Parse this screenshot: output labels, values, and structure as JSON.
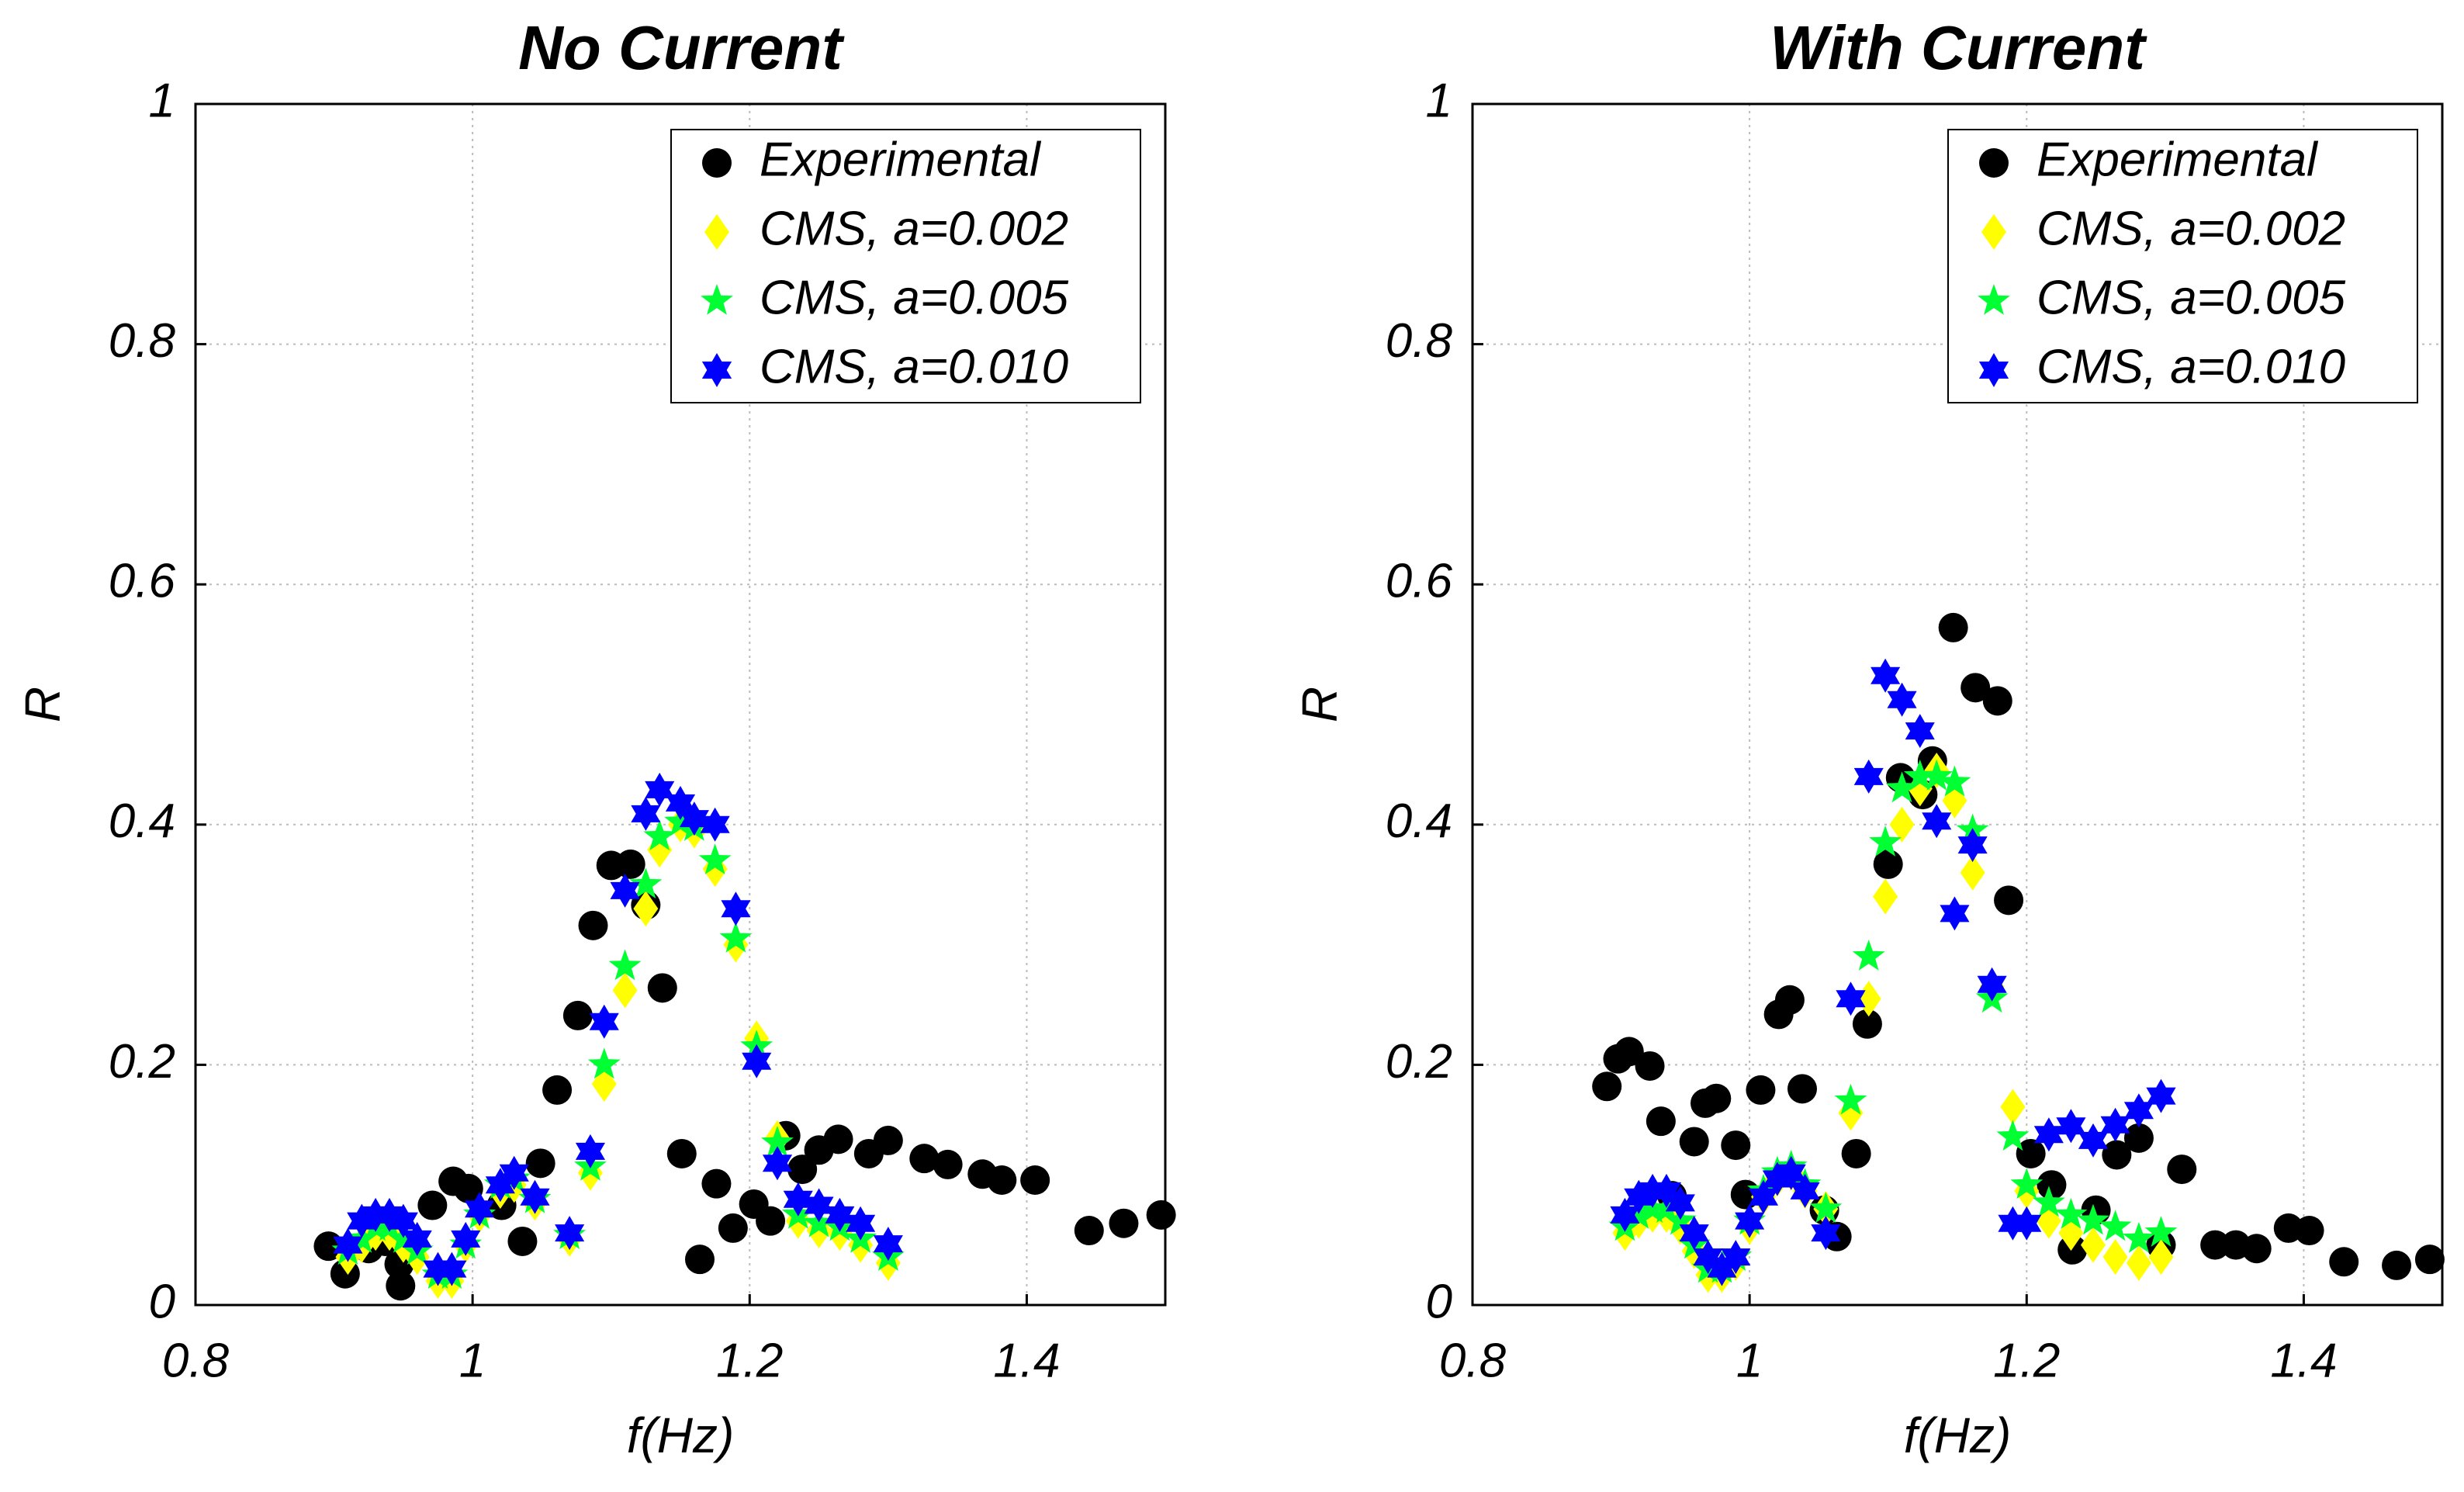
{
  "chart_data": [
    {
      "type": "scatter",
      "title": "No Current",
      "xlabel": "f(Hz)",
      "ylabel": "R",
      "xlim": [
        0.8,
        1.5
      ],
      "ylim": [
        0,
        1
      ],
      "xticks": [
        0.8,
        1,
        1.2,
        1.4
      ],
      "yticks": [
        0,
        0.2,
        0.4,
        0.6,
        0.8,
        1
      ],
      "grid": true,
      "legend": "upper right",
      "series": [
        {
          "name": "Experimental",
          "color": "#000000",
          "marker": "circle",
          "x": [
            0.896,
            0.908,
            0.925,
            0.937,
            0.947,
            0.948,
            0.971,
            0.986,
            0.997,
            1.021,
            1.036,
            1.049,
            1.061,
            1.076,
            1.087,
            1.1,
            1.114,
            1.125,
            1.137,
            1.151,
            1.164,
            1.176,
            1.188,
            1.203,
            1.215,
            1.226,
            1.238,
            1.25,
            1.264,
            1.286,
            1.3,
            1.326,
            1.343,
            1.368,
            1.382,
            1.406,
            1.445,
            1.47,
            1.497
          ],
          "values": [
            0.049,
            0.026,
            0.047,
            0.053,
            0.034,
            0.016,
            0.083,
            0.103,
            0.097,
            0.083,
            0.053,
            0.118,
            0.179,
            0.241,
            0.316,
            0.366,
            0.367,
            0.333,
            0.264,
            0.126,
            0.038,
            0.101,
            0.064,
            0.084,
            0.07,
            0.141,
            0.113,
            0.129,
            0.138,
            0.126,
            0.137,
            0.122,
            0.117,
            0.109,
            0.104,
            0.104,
            0.062,
            0.068,
            0.075
          ]
        },
        {
          "name": "CMS, a=0.002",
          "color": "#ffff00",
          "marker": "diamond",
          "x": [
            0.91,
            0.92,
            0.93,
            0.94,
            0.95,
            0.96,
            0.975,
            0.985,
            0.995,
            1.005,
            1.02,
            1.03,
            1.045,
            1.07,
            1.085,
            1.095,
            1.11,
            1.125,
            1.135,
            1.15,
            1.16,
            1.175,
            1.19,
            1.205,
            1.22,
            1.235,
            1.25,
            1.265,
            1.28,
            1.3
          ],
          "values": [
            0.04,
            0.05,
            0.06,
            0.06,
            0.05,
            0.04,
            0.02,
            0.02,
            0.05,
            0.075,
            0.095,
            0.1,
            0.085,
            0.055,
            0.11,
            0.184,
            0.262,
            0.33,
            0.379,
            0.4,
            0.395,
            0.363,
            0.3,
            0.222,
            0.139,
            0.07,
            0.062,
            0.06,
            0.05,
            0.035
          ]
        },
        {
          "name": "CMS, a=0.005",
          "color": "#00ff33",
          "marker": "star5",
          "x": [
            0.91,
            0.92,
            0.93,
            0.94,
            0.95,
            0.96,
            0.975,
            0.985,
            0.995,
            1.005,
            1.02,
            1.03,
            1.045,
            1.07,
            1.085,
            1.095,
            1.11,
            1.125,
            1.135,
            1.15,
            1.16,
            1.175,
            1.19,
            1.205,
            1.22,
            1.235,
            1.25,
            1.265,
            1.28,
            1.3
          ],
          "values": [
            0.045,
            0.055,
            0.065,
            0.065,
            0.055,
            0.045,
            0.025,
            0.025,
            0.05,
            0.075,
            0.1,
            0.105,
            0.088,
            0.058,
            0.115,
            0.2,
            0.282,
            0.35,
            0.39,
            0.402,
            0.398,
            0.37,
            0.305,
            0.215,
            0.135,
            0.075,
            0.068,
            0.065,
            0.055,
            0.04
          ]
        },
        {
          "name": "CMS, a=0.010",
          "color": "#0000ff",
          "marker": "star6",
          "x": [
            0.91,
            0.92,
            0.93,
            0.94,
            0.95,
            0.96,
            0.975,
            0.985,
            0.995,
            1.005,
            1.02,
            1.03,
            1.045,
            1.07,
            1.085,
            1.095,
            1.11,
            1.125,
            1.135,
            1.15,
            1.16,
            1.175,
            1.19,
            1.205,
            1.22,
            1.235,
            1.25,
            1.265,
            1.28,
            1.3
          ],
          "values": [
            0.05,
            0.07,
            0.075,
            0.075,
            0.07,
            0.055,
            0.03,
            0.03,
            0.055,
            0.08,
            0.1,
            0.11,
            0.09,
            0.06,
            0.128,
            0.236,
            0.345,
            0.409,
            0.429,
            0.418,
            0.405,
            0.4,
            0.33,
            0.203,
            0.118,
            0.088,
            0.083,
            0.075,
            0.068,
            0.051
          ]
        }
      ]
    },
    {
      "type": "scatter",
      "title": "With Current",
      "xlabel": "f(Hz)",
      "ylabel": "R",
      "xlim": [
        0.8,
        1.5
      ],
      "ylim": [
        0,
        1
      ],
      "xticks": [
        0.8,
        1,
        1.2,
        1.4
      ],
      "yticks": [
        0,
        0.2,
        0.4,
        0.6,
        0.8,
        1
      ],
      "grid": true,
      "legend": "upper right",
      "series": [
        {
          "name": "Experimental",
          "color": "#000000",
          "marker": "circle",
          "x": [
            0.897,
            0.905,
            0.913,
            0.928,
            0.936,
            0.944,
            0.96,
            0.968,
            0.976,
            0.99,
            0.997,
            1.008,
            1.021,
            1.029,
            1.038,
            1.054,
            1.063,
            1.077,
            1.085,
            1.1,
            1.109,
            1.125,
            1.132,
            1.147,
            1.163,
            1.179,
            1.187,
            1.203,
            1.218,
            1.233,
            1.25,
            1.265,
            1.281,
            1.297,
            1.312,
            1.336,
            1.351,
            1.366,
            1.389,
            1.404,
            1.429,
            1.467,
            1.491
          ],
          "values": [
            0.182,
            0.205,
            0.211,
            0.199,
            0.153,
            0.091,
            0.136,
            0.168,
            0.172,
            0.133,
            0.092,
            0.179,
            0.242,
            0.254,
            0.18,
            0.079,
            0.057,
            0.126,
            0.234,
            0.367,
            0.439,
            0.425,
            0.453,
            0.564,
            0.514,
            0.503,
            0.337,
            0.126,
            0.1,
            0.046,
            0.079,
            0.125,
            0.139,
            0.05,
            0.113,
            0.05,
            0.05,
            0.047,
            0.064,
            0.062,
            0.036,
            0.033,
            0.038
          ]
        },
        {
          "name": "CMS, a=0.002",
          "color": "#ffff00",
          "marker": "diamond",
          "x": [
            0.91,
            0.92,
            0.93,
            0.94,
            0.95,
            0.96,
            0.97,
            0.98,
            0.99,
            1,
            1.01,
            1.02,
            1.03,
            1.04,
            1.055,
            1.073,
            1.086,
            1.098,
            1.11,
            1.123,
            1.135,
            1.148,
            1.161,
            1.175,
            1.19,
            1.2,
            1.216,
            1.232,
            1.248,
            1.264,
            1.281,
            1.297
          ],
          "values": [
            0.06,
            0.07,
            0.075,
            0.075,
            0.065,
            0.045,
            0.025,
            0.025,
            0.035,
            0.065,
            0.09,
            0.105,
            0.11,
            0.095,
            0.08,
            0.16,
            0.255,
            0.34,
            0.4,
            0.43,
            0.445,
            0.42,
            0.36,
            0.265,
            0.165,
            0.095,
            0.07,
            0.06,
            0.05,
            0.04,
            0.035,
            0.04
          ]
        },
        {
          "name": "CMS, a=0.005",
          "color": "#00ff33",
          "marker": "star5",
          "x": [
            0.91,
            0.92,
            0.93,
            0.94,
            0.95,
            0.96,
            0.97,
            0.98,
            0.99,
            1,
            1.01,
            1.02,
            1.03,
            1.04,
            1.055,
            1.073,
            1.086,
            1.098,
            1.11,
            1.123,
            1.135,
            1.148,
            1.161,
            1.175,
            1.19,
            1.2,
            1.216,
            1.232,
            1.248,
            1.264,
            1.281,
            1.297
          ],
          "values": [
            0.065,
            0.075,
            0.08,
            0.08,
            0.07,
            0.05,
            0.03,
            0.03,
            0.04,
            0.07,
            0.095,
            0.11,
            0.115,
            0.1,
            0.08,
            0.17,
            0.29,
            0.385,
            0.43,
            0.44,
            0.44,
            0.435,
            0.395,
            0.255,
            0.14,
            0.1,
            0.085,
            0.075,
            0.07,
            0.065,
            0.055,
            0.06
          ]
        },
        {
          "name": "CMS, a=0.010",
          "color": "#0000ff",
          "marker": "star6",
          "x": [
            0.91,
            0.92,
            0.93,
            0.94,
            0.95,
            0.96,
            0.97,
            0.98,
            0.99,
            1,
            1.01,
            1.02,
            1.03,
            1.04,
            1.055,
            1.073,
            1.086,
            1.098,
            1.11,
            1.123,
            1.135,
            1.148,
            1.161,
            1.175,
            1.19,
            1.2,
            1.216,
            1.232,
            1.248,
            1.264,
            1.281,
            1.297
          ],
          "values": [
            0.075,
            0.09,
            0.095,
            0.095,
            0.085,
            0.06,
            0.04,
            0.03,
            0.04,
            0.07,
            0.09,
            0.105,
            0.11,
            0.095,
            0.06,
            0.255,
            0.44,
            0.524,
            0.504,
            0.478,
            0.403,
            0.326,
            0.383,
            0.267,
            0.068,
            0.068,
            0.142,
            0.149,
            0.137,
            0.15,
            0.162,
            0.174
          ]
        }
      ]
    }
  ]
}
